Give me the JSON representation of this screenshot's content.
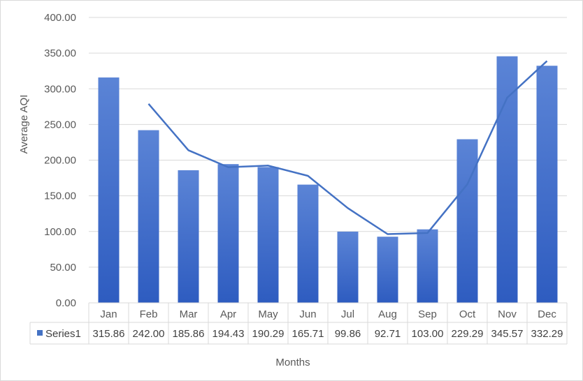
{
  "chart_data": {
    "type": "bar",
    "categories": [
      "Jan",
      "Feb",
      "Mar",
      "Apr",
      "May",
      "Jun",
      "Jul",
      "Aug",
      "Sep",
      "Oct",
      "Nov",
      "Dec"
    ],
    "series": [
      {
        "name": "Series1",
        "values": [
          315.86,
          242.0,
          185.86,
          194.43,
          190.29,
          165.71,
          99.86,
          92.71,
          103.0,
          229.29,
          345.57,
          332.29
        ],
        "value_labels": [
          "315.86",
          "242.00",
          "185.86",
          "194.43",
          "190.29",
          "165.71",
          "99.86",
          "92.71",
          "103.00",
          "229.29",
          "345.57",
          "332.29"
        ]
      }
    ],
    "trendline": {
      "type": "moving_average",
      "period": 2,
      "start_index": 1
    },
    "xlabel": "Months",
    "ylabel": "Average AQI",
    "ylim": [
      0,
      400
    ],
    "y_ticks": [
      0,
      50,
      100,
      150,
      200,
      250,
      300,
      350,
      400
    ],
    "y_tick_labels": [
      "0.00",
      "50.00",
      "100.00",
      "150.00",
      "200.00",
      "250.00",
      "300.00",
      "350.00",
      "400.00"
    ],
    "grid": true,
    "legend": "data-table",
    "colors": {
      "bar_top": "#5b84d6",
      "bar_bottom": "#2e5cc0",
      "trendline": "#4472c4",
      "legend_key": "#4472c4",
      "gridline": "#d9d9d9"
    }
  }
}
